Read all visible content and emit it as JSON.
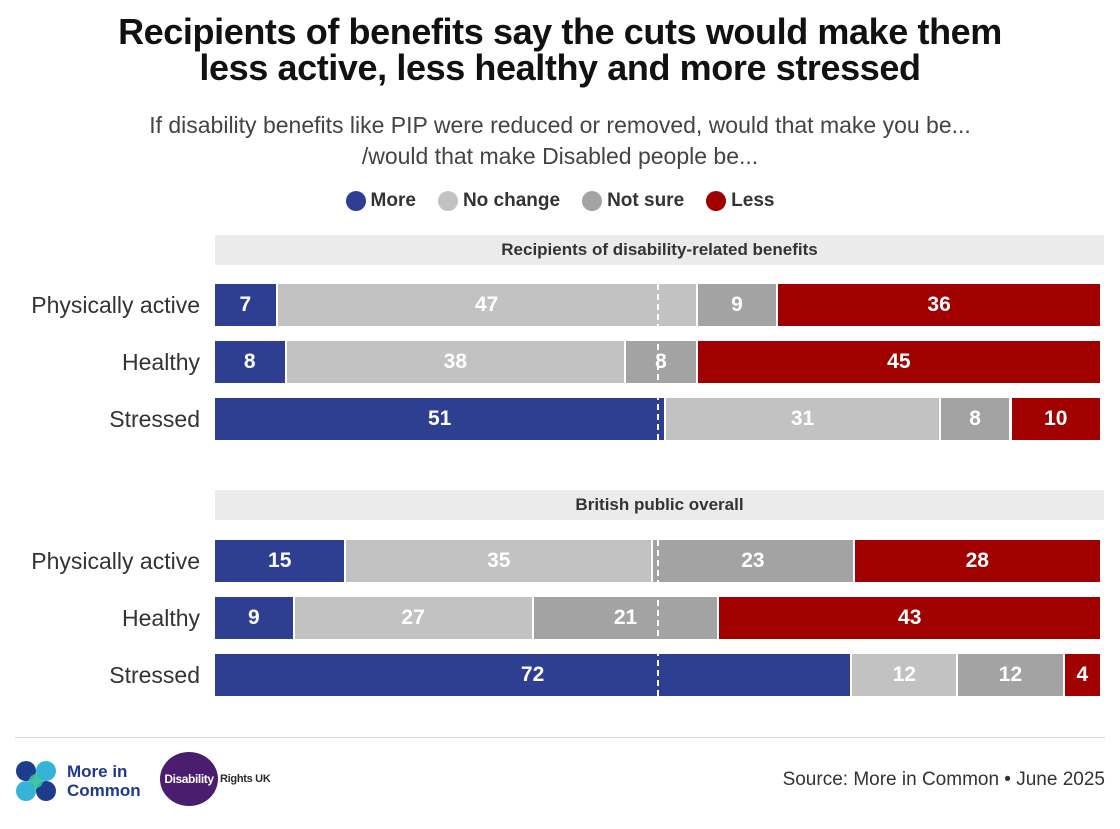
{
  "title_lines": [
    "Recipients of benefits say the cuts would make them",
    "less active, less healthy and more stressed"
  ],
  "subtitle_lines": [
    "If disability benefits like PIP were reduced or removed, would that make you be...",
    "/would that make Disabled people be..."
  ],
  "legend": [
    {
      "label": "More",
      "color": "#2e3f92"
    },
    {
      "label": "No change",
      "color": "#c2c2c2"
    },
    {
      "label": "Not sure",
      "color": "#a3a3a3"
    },
    {
      "label": "Less",
      "color": "#a00000"
    }
  ],
  "chart_data": {
    "type": "bar",
    "orientation": "horizontal",
    "stacked": true,
    "value_unit": "percent",
    "series_names": [
      "More",
      "No change",
      "Not sure",
      "Less"
    ],
    "panels": [
      {
        "title": "Recipients of disability-related benefits",
        "rows": [
          {
            "label": "Physically active",
            "values": [
              7,
              47,
              9,
              36
            ]
          },
          {
            "label": "Healthy",
            "values": [
              8,
              38,
              8,
              45
            ]
          },
          {
            "label": "Stressed",
            "values": [
              51,
              31,
              8,
              10
            ]
          }
        ]
      },
      {
        "title": "British public overall",
        "rows": [
          {
            "label": "Physically active",
            "values": [
              15,
              35,
              23,
              28
            ]
          },
          {
            "label": "Healthy",
            "values": [
              9,
              27,
              21,
              43
            ]
          },
          {
            "label": "Stressed",
            "values": [
              72,
              12,
              12,
              4
            ]
          }
        ]
      }
    ],
    "reference_line": 50
  },
  "footer": {
    "logo_more_in_common": [
      "More in",
      "Common"
    ],
    "logo_disability": "Disability",
    "logo_rights_uk": "Rights UK",
    "source": "Source: More in Common • June 2025"
  }
}
